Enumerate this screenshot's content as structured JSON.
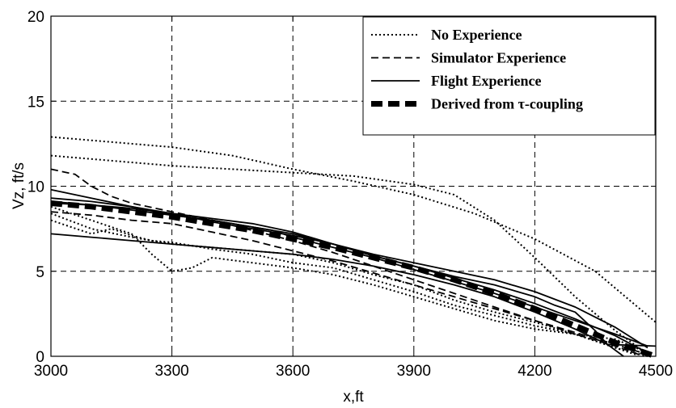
{
  "chart_data": {
    "type": "line",
    "xlabel": "x,ft",
    "ylabel": "Vz, ft/s",
    "xlim": [
      3000,
      4500
    ],
    "ylim": [
      0,
      20
    ],
    "xticks": [
      3000,
      3300,
      3600,
      3900,
      4200,
      4500
    ],
    "yticks": [
      0,
      5,
      10,
      15,
      20
    ],
    "grid": true,
    "legend_position": "top-right",
    "legend": [
      {
        "label": "No Experience",
        "style": "dotted"
      },
      {
        "label": "Simulator Experience",
        "style": "dashed"
      },
      {
        "label": "Flight Experience",
        "style": "solid"
      },
      {
        "label": "Derived from τ-coupling",
        "style": "thick-dashed"
      }
    ],
    "series": [
      {
        "group": "No Experience",
        "style": "dotted",
        "x": [
          3000,
          3150,
          3300,
          3450,
          3600,
          3750,
          3900,
          4050,
          4200,
          4350,
          4450,
          4500
        ],
        "y": [
          12.9,
          12.6,
          12.3,
          11.8,
          11.0,
          10.3,
          9.5,
          8.4,
          6.9,
          5.0,
          3.0,
          2.0
        ]
      },
      {
        "group": "No Experience",
        "style": "dotted",
        "x": [
          3000,
          3150,
          3300,
          3450,
          3600,
          3750,
          3900,
          4000,
          4100,
          4200,
          4300,
          4400,
          4470
        ],
        "y": [
          11.8,
          11.5,
          11.2,
          11.0,
          10.8,
          10.6,
          10.1,
          9.5,
          8.0,
          5.8,
          3.5,
          1.5,
          0.3
        ]
      },
      {
        "group": "No Experience",
        "style": "dotted",
        "x": [
          3000,
          3100,
          3200,
          3300,
          3400,
          3500,
          3600,
          3700,
          3800,
          3900,
          4000,
          4100,
          4200,
          4300,
          4400,
          4450
        ],
        "y": [
          8.4,
          7.5,
          7.0,
          6.6,
          6.4,
          6.2,
          6.0,
          5.5,
          4.8,
          4.2,
          3.3,
          2.6,
          2.0,
          1.3,
          0.5,
          0.1
        ]
      },
      {
        "group": "No Experience",
        "style": "dotted",
        "x": [
          3000,
          3050,
          3100,
          3150,
          3200,
          3250,
          3300,
          3400,
          3500,
          3600,
          3700,
          3800,
          3900,
          4000,
          4100,
          4200,
          4300,
          4400,
          4480
        ],
        "y": [
          8.0,
          7.6,
          7.2,
          7.5,
          7.1,
          6.8,
          6.7,
          6.3,
          6.0,
          5.5,
          5.2,
          4.5,
          3.8,
          3.0,
          2.4,
          1.8,
          1.3,
          0.5,
          0.0
        ]
      },
      {
        "group": "No Experience",
        "style": "dotted",
        "x": [
          3000,
          3100,
          3200,
          3250,
          3300,
          3350,
          3400,
          3500,
          3600,
          3700,
          3800,
          3900,
          4000,
          4100,
          4200,
          4300,
          4400,
          4480
        ],
        "y": [
          8.8,
          8.0,
          7.2,
          6.0,
          5.0,
          5.2,
          5.8,
          5.5,
          5.2,
          4.8,
          4.2,
          3.5,
          2.8,
          2.1,
          1.6,
          1.3,
          1.0,
          0.2
        ]
      },
      {
        "group": "Simulator Experience",
        "style": "dashed",
        "x": [
          3000,
          3060,
          3100,
          3150,
          3200,
          3300,
          3400,
          3500,
          3600,
          3700,
          3800,
          3900,
          4000,
          4100,
          4200,
          4300,
          4400,
          4480
        ],
        "y": [
          11.0,
          10.7,
          10.0,
          9.4,
          9.0,
          8.5,
          8.0,
          7.4,
          6.8,
          6.1,
          5.3,
          4.5,
          3.7,
          2.9,
          2.1,
          1.4,
          0.7,
          0.1
        ]
      },
      {
        "group": "Simulator Experience",
        "style": "dashed",
        "x": [
          3000,
          3100,
          3200,
          3300,
          3400,
          3500,
          3600,
          3700,
          3800,
          3900,
          4000,
          4100,
          4200,
          4300,
          4400,
          4470
        ],
        "y": [
          8.5,
          8.3,
          8.0,
          7.8,
          7.3,
          6.8,
          6.2,
          5.6,
          4.9,
          4.2,
          3.5,
          2.8,
          2.1,
          1.3,
          0.6,
          0.0
        ]
      },
      {
        "group": "Flight Experience",
        "style": "solid",
        "x": [
          3000,
          3100,
          3200,
          3300,
          3400,
          3500,
          3600,
          3700,
          3800,
          3900,
          4000,
          4100,
          4200,
          4300,
          4400,
          4480
        ],
        "y": [
          9.8,
          9.3,
          8.8,
          8.3,
          8.0,
          7.6,
          7.2,
          6.6,
          5.9,
          5.3,
          4.6,
          3.9,
          3.1,
          2.2,
          1.2,
          0.2
        ]
      },
      {
        "group": "Flight Experience",
        "style": "solid",
        "x": [
          3000,
          3100,
          3200,
          3300,
          3400,
          3500,
          3600,
          3700,
          3800,
          3900,
          4000,
          4100,
          4200,
          4300,
          4380,
          4500
        ],
        "y": [
          7.2,
          7.0,
          6.8,
          6.6,
          6.4,
          6.2,
          6.0,
          5.7,
          5.3,
          4.8,
          4.2,
          3.5,
          2.6,
          1.6,
          0.7,
          0.6
        ]
      },
      {
        "group": "Flight Experience",
        "style": "solid",
        "x": [
          3000,
          3100,
          3200,
          3300,
          3400,
          3500,
          3600,
          3700,
          3800,
          3900,
          4000,
          4100,
          4200,
          4250,
          4300,
          4350,
          4380,
          4420
        ],
        "y": [
          9.0,
          8.9,
          8.7,
          8.4,
          8.1,
          7.8,
          7.3,
          6.6,
          5.9,
          5.3,
          4.7,
          4.2,
          3.5,
          3.0,
          2.6,
          1.5,
          0.7,
          0.0
        ]
      },
      {
        "group": "Flight Experience",
        "style": "solid",
        "x": [
          3000,
          3100,
          3200,
          3300,
          3400,
          3500,
          3600,
          3700,
          3800,
          3900,
          4000,
          4100,
          4200,
          4300,
          4400,
          4480
        ],
        "y": [
          9.3,
          9.1,
          8.8,
          8.4,
          7.9,
          7.5,
          7.1,
          6.6,
          6.0,
          5.5,
          5.0,
          4.5,
          3.8,
          2.9,
          1.7,
          0.5
        ]
      },
      {
        "group": "Flight Experience",
        "style": "solid",
        "x": [
          3000,
          3100,
          3200,
          3300,
          3400,
          3500,
          3550,
          3600,
          3700,
          3800,
          3900,
          4000,
          4100,
          4200,
          4300,
          4400,
          4480
        ],
        "y": [
          9.1,
          8.9,
          8.6,
          8.3,
          8.0,
          7.6,
          7.4,
          7.0,
          6.4,
          5.8,
          5.1,
          4.4,
          3.7,
          2.9,
          2.1,
          1.3,
          0.6
        ]
      },
      {
        "group": "Derived from τ-coupling",
        "style": "thick-dashed",
        "x": [
          3000,
          3100,
          3200,
          3300,
          3400,
          3500,
          3600,
          3700,
          3800,
          3900,
          4000,
          4100,
          4200,
          4300,
          4400,
          4500
        ],
        "y": [
          9.0,
          8.8,
          8.5,
          8.2,
          7.8,
          7.4,
          6.9,
          6.4,
          5.8,
          5.2,
          4.5,
          3.7,
          2.8,
          1.8,
          0.8,
          0.0
        ]
      }
    ]
  }
}
